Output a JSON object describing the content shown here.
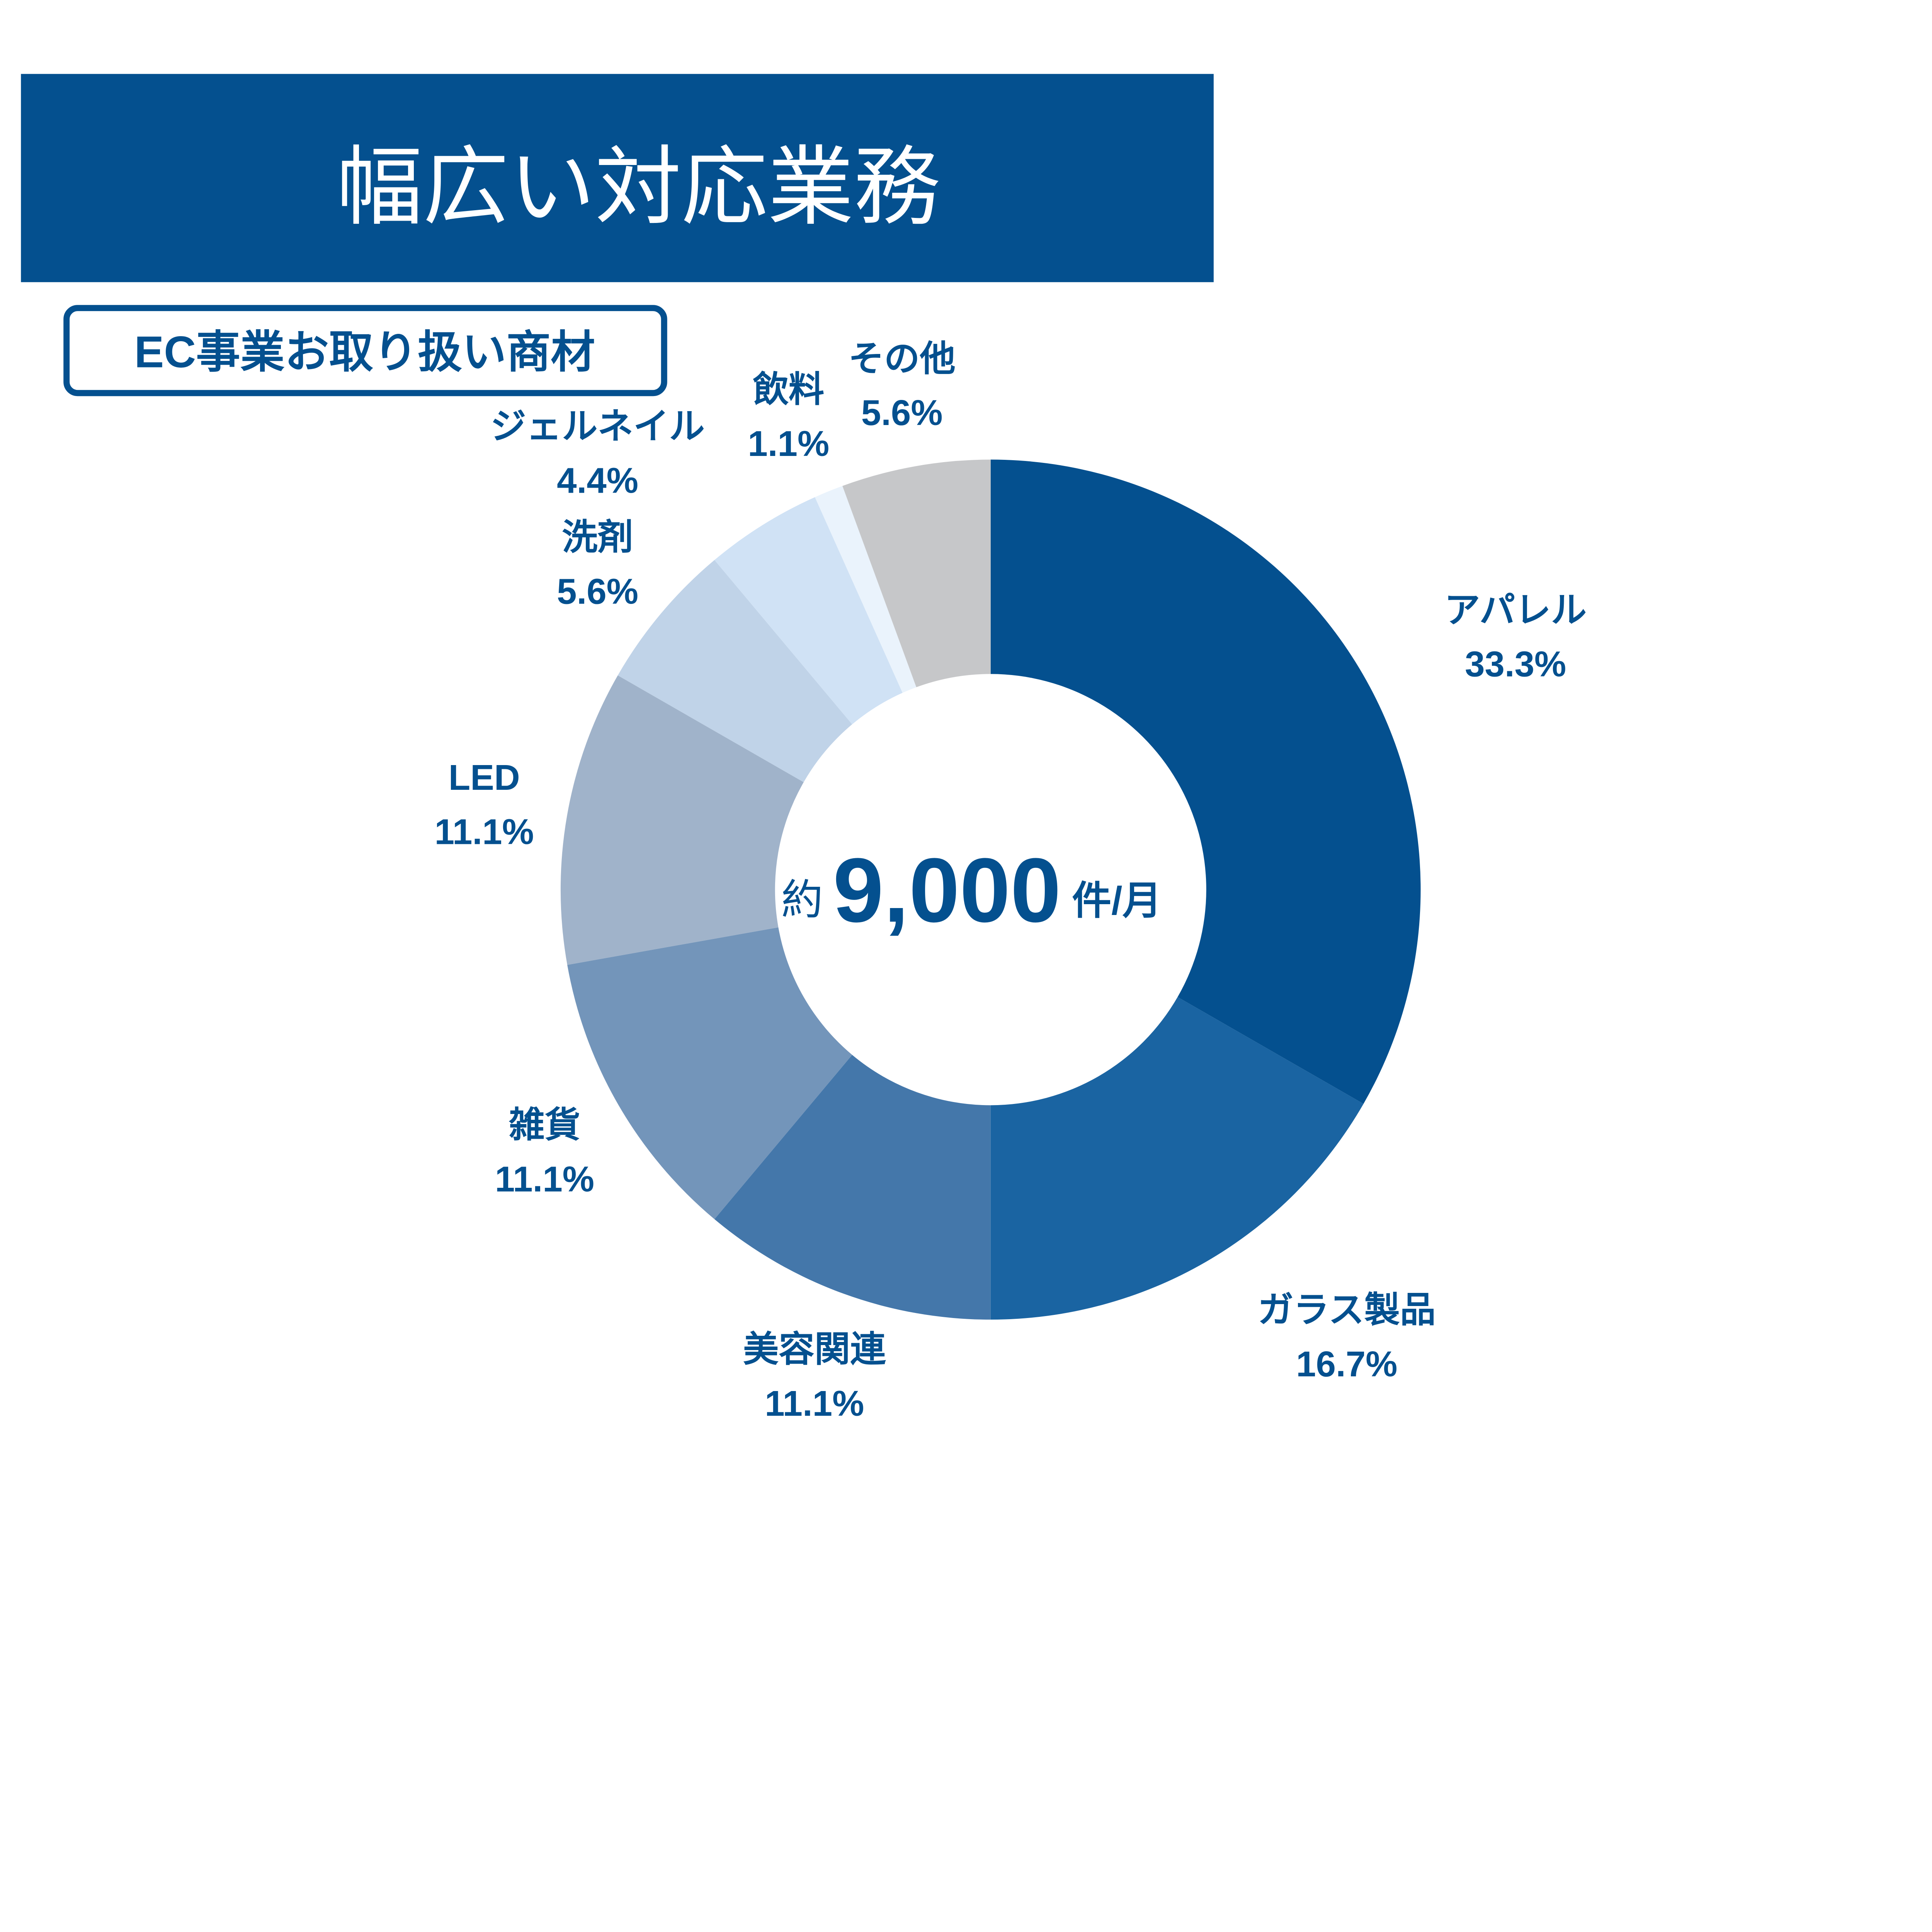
{
  "header": {
    "title": "幅広い対応業務"
  },
  "subtitle": "EC事業お取り扱い商材",
  "center": {
    "prefix": "約",
    "value": "9,000",
    "suffix": "件/月"
  },
  "colors": {
    "brand": "#04508f",
    "text_on_brand": "#ffffff"
  },
  "chart_data": {
    "type": "pie",
    "donut": true,
    "title": "",
    "start": "top",
    "direction": "clockwise",
    "slices": [
      {
        "label": "アパレル",
        "value": 33.3,
        "value_label": "33.3%",
        "color": "#04508f"
      },
      {
        "label": "ガラス製品",
        "value": 16.7,
        "value_label": "16.7%",
        "color": "#1a64a2"
      },
      {
        "label": "美容関連",
        "value": 11.1,
        "value_label": "11.1%",
        "color": "#4477aa"
      },
      {
        "label": "雑貨",
        "value": 11.1,
        "value_label": "11.1%",
        "color": "#7395ba"
      },
      {
        "label": "LED",
        "value": 11.1,
        "value_label": "11.1%",
        "color": "#a0b3ca"
      },
      {
        "label": "洗剤",
        "value": 5.6,
        "value_label": "5.6%",
        "color": "#c0d3e8"
      },
      {
        "label": "ジェルネイル",
        "value": 4.4,
        "value_label": "4.4%",
        "color": "#d0e2f5"
      },
      {
        "label": "飲料",
        "value": 1.1,
        "value_label": "1.1%",
        "color": "#eaf3fc"
      },
      {
        "label": "その他",
        "value": 5.6,
        "value_label": "5.6%",
        "color": "#c6c7c9"
      }
    ]
  }
}
